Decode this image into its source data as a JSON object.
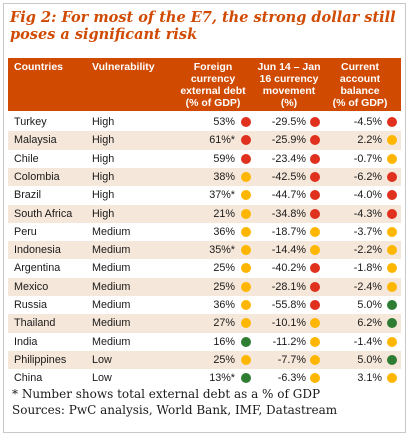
{
  "title": "Fig 2: For most of the E7, the strong dollar still poses a significant risk",
  "colors": {
    "header_bg": "#d04a02",
    "row_alt_bg": "#f5e7d9",
    "red": "#e0301e",
    "amber": "#ffb600",
    "green": "#2e7d32"
  },
  "columns": [
    "Countries",
    "Vulnerability",
    "Foreign currency external debt (% of GDP)",
    "Jun 14 – Jan 16 currency movement (%)",
    "Current account balance (% of GDP)"
  ],
  "header_lines": {
    "col1": [
      "Countries"
    ],
    "col2": [
      "Vulnerability"
    ],
    "col3": [
      "Foreign",
      "currency",
      "external debt",
      "(% of GDP)"
    ],
    "col4": [
      "Jun 14 – Jan",
      "16 currency",
      "movement",
      "(%)"
    ],
    "col5": [
      "Current",
      "account",
      "balance",
      "(% of GDP)"
    ]
  },
  "rows": [
    {
      "country": "Turkey",
      "vulnerability": "High",
      "debt": "53%",
      "debt_status": "red",
      "currency": "-29.5%",
      "currency_status": "red",
      "account": "-4.5%",
      "account_status": "red"
    },
    {
      "country": "Malaysia",
      "vulnerability": "High",
      "debt": "61%*",
      "debt_status": "red",
      "currency": "-25.9%",
      "currency_status": "red",
      "account": "2.2%",
      "account_status": "amber"
    },
    {
      "country": "Chile",
      "vulnerability": "High",
      "debt": "59%",
      "debt_status": "red",
      "currency": "-23.4%",
      "currency_status": "red",
      "account": "-0.7%",
      "account_status": "amber"
    },
    {
      "country": "Colombia",
      "vulnerability": "High",
      "debt": "38%",
      "debt_status": "amber",
      "currency": "-42.5%",
      "currency_status": "red",
      "account": "-6.2%",
      "account_status": "red"
    },
    {
      "country": "Brazil",
      "vulnerability": "High",
      "debt": "37%*",
      "debt_status": "amber",
      "currency": "-44.7%",
      "currency_status": "red",
      "account": "-4.0%",
      "account_status": "red"
    },
    {
      "country": "South Africa",
      "vulnerability": "High",
      "debt": "21%",
      "debt_status": "amber",
      "currency": "-34.8%",
      "currency_status": "red",
      "account": "-4.3%",
      "account_status": "red"
    },
    {
      "country": "Peru",
      "vulnerability": "Medium",
      "debt": "36%",
      "debt_status": "amber",
      "currency": "-18.7%",
      "currency_status": "amber",
      "account": "-3.7%",
      "account_status": "amber"
    },
    {
      "country": "Indonesia",
      "vulnerability": "Medium",
      "debt": "35%*",
      "debt_status": "amber",
      "currency": "-14.4%",
      "currency_status": "amber",
      "account": "-2.2%",
      "account_status": "amber"
    },
    {
      "country": "Argentina",
      "vulnerability": "Medium",
      "debt": "25%",
      "debt_status": "amber",
      "currency": "-40.2%",
      "currency_status": "red",
      "account": "-1.8%",
      "account_status": "amber"
    },
    {
      "country": "Mexico",
      "vulnerability": "Medium",
      "debt": "25%",
      "debt_status": "amber",
      "currency": "-28.1%",
      "currency_status": "red",
      "account": "-2.4%",
      "account_status": "amber"
    },
    {
      "country": "Russia",
      "vulnerability": "Medium",
      "debt": "36%",
      "debt_status": "amber",
      "currency": "-55.8%",
      "currency_status": "red",
      "account": "5.0%",
      "account_status": "green"
    },
    {
      "country": "Thailand",
      "vulnerability": "Medium",
      "debt": "27%",
      "debt_status": "amber",
      "currency": "-10.1%",
      "currency_status": "amber",
      "account": "6.2%",
      "account_status": "green"
    },
    {
      "country": "India",
      "vulnerability": "Medium",
      "debt": "16%",
      "debt_status": "green",
      "currency": "-11.2%",
      "currency_status": "amber",
      "account": "-1.4%",
      "account_status": "amber"
    },
    {
      "country": "Philippines",
      "vulnerability": "Low",
      "debt": "25%",
      "debt_status": "amber",
      "currency": "-7.7%",
      "currency_status": "amber",
      "account": "5.0%",
      "account_status": "green"
    },
    {
      "country": "China",
      "vulnerability": "Low",
      "debt": "13%*",
      "debt_status": "green",
      "currency": "-6.3%",
      "currency_status": "amber",
      "account": "3.1%",
      "account_status": "amber"
    }
  ],
  "footnote": {
    "note": "* Number shows total external debt as a % of GDP",
    "sources": "Sources: PwC analysis, World Bank, IMF, Datastream"
  }
}
